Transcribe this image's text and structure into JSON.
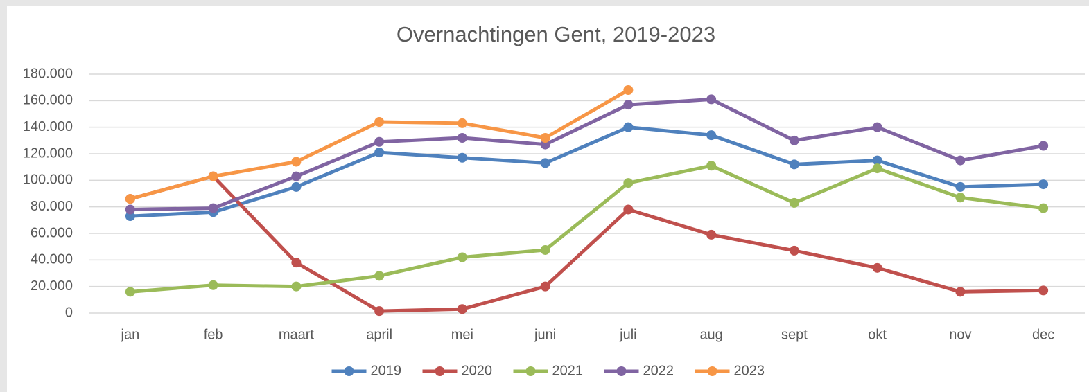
{
  "chart_data": {
    "type": "line",
    "title": "Overnachtingen Gent, 2019-2023",
    "categories": [
      "jan",
      "feb",
      "maart",
      "april",
      "mei",
      "juni",
      "juli",
      "aug",
      "sept",
      "okt",
      "nov",
      "dec"
    ],
    "series": [
      {
        "name": "2019",
        "color": "#4f81bd",
        "values": [
          73000,
          76000,
          95000,
          121000,
          117000,
          113000,
          140000,
          134000,
          112000,
          115000,
          95000,
          97000
        ]
      },
      {
        "name": "2020",
        "color": "#c0504d",
        "values": [
          86000,
          103000,
          38000,
          1500,
          3000,
          20000,
          78000,
          59000,
          47000,
          34000,
          16000,
          17000
        ]
      },
      {
        "name": "2021",
        "color": "#9bbb59",
        "values": [
          16000,
          21000,
          20000,
          28000,
          42000,
          47500,
          98000,
          111000,
          83000,
          109000,
          87000,
          79000
        ]
      },
      {
        "name": "2022",
        "color": "#8064a2",
        "values": [
          78000,
          79000,
          103000,
          129000,
          132000,
          127000,
          157000,
          161000,
          130000,
          140000,
          115000,
          126000
        ]
      },
      {
        "name": "2023",
        "color": "#f79646",
        "values": [
          86000,
          103000,
          114000,
          144000,
          143000,
          132000,
          168000,
          null,
          null,
          null,
          null,
          null
        ]
      }
    ],
    "ylim": [
      0,
      180000
    ],
    "yticks": [
      0,
      {
        "value": 20000,
        "label": "20.000"
      },
      {
        "value": 40000,
        "label": "40.000"
      },
      {
        "value": 60000,
        "label": "60.000"
      },
      {
        "value": 80000,
        "label": "80.000"
      },
      {
        "value": 100000,
        "label": "100.000"
      },
      {
        "value": 120000,
        "label": "120.000"
      },
      {
        "value": 140000,
        "label": "140.000"
      },
      {
        "value": 160000,
        "label": "160.000"
      },
      {
        "value": 180000,
        "label": "180.000"
      }
    ],
    "grid": true,
    "legend": "bottom"
  }
}
